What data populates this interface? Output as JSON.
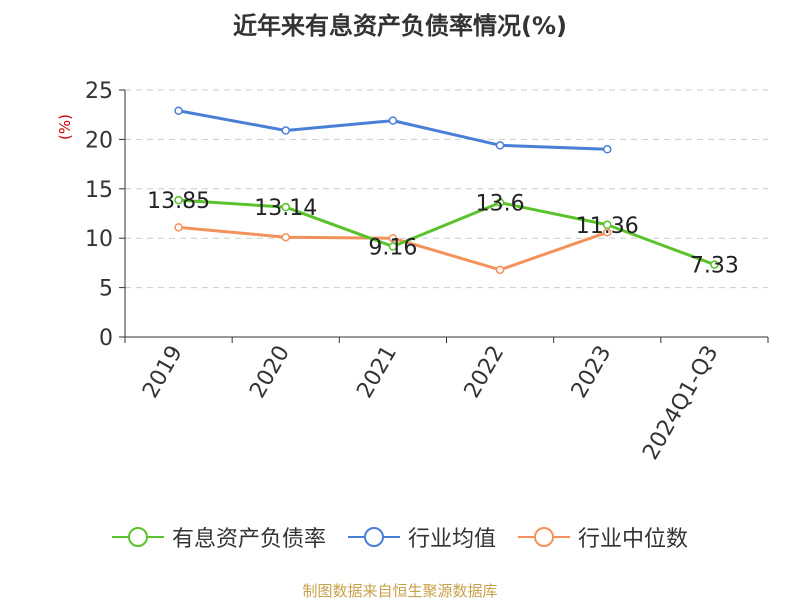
{
  "chart_data": {
    "type": "line",
    "title": "近年来有息资产负债率情况(%)",
    "ylabel": "(%)",
    "ylim": [
      0,
      25
    ],
    "yticks": [
      0,
      5,
      10,
      15,
      20,
      25
    ],
    "grid": true,
    "legend_position": "bottom",
    "categories": [
      "2019",
      "2020",
      "2021",
      "2022",
      "2023",
      "2024Q1-Q3"
    ],
    "series": [
      {
        "name": "有息资产负债率",
        "color": "#5ac22b",
        "values": [
          13.85,
          13.14,
          9.16,
          13.6,
          11.36,
          7.33
        ],
        "labels": [
          "13.85",
          "13.14",
          "9.16",
          "13.6",
          "11.36",
          "7.33"
        ]
      },
      {
        "name": "行业均值",
        "color": "#4a7fd8",
        "values": [
          22.9,
          20.9,
          21.9,
          19.4,
          19.0,
          null
        ]
      },
      {
        "name": "行业中位数",
        "color": "#f4925c",
        "values": [
          11.1,
          10.1,
          10.0,
          6.8,
          10.6,
          null
        ]
      }
    ]
  },
  "source_note": "制图数据来自恒生聚源数据库"
}
